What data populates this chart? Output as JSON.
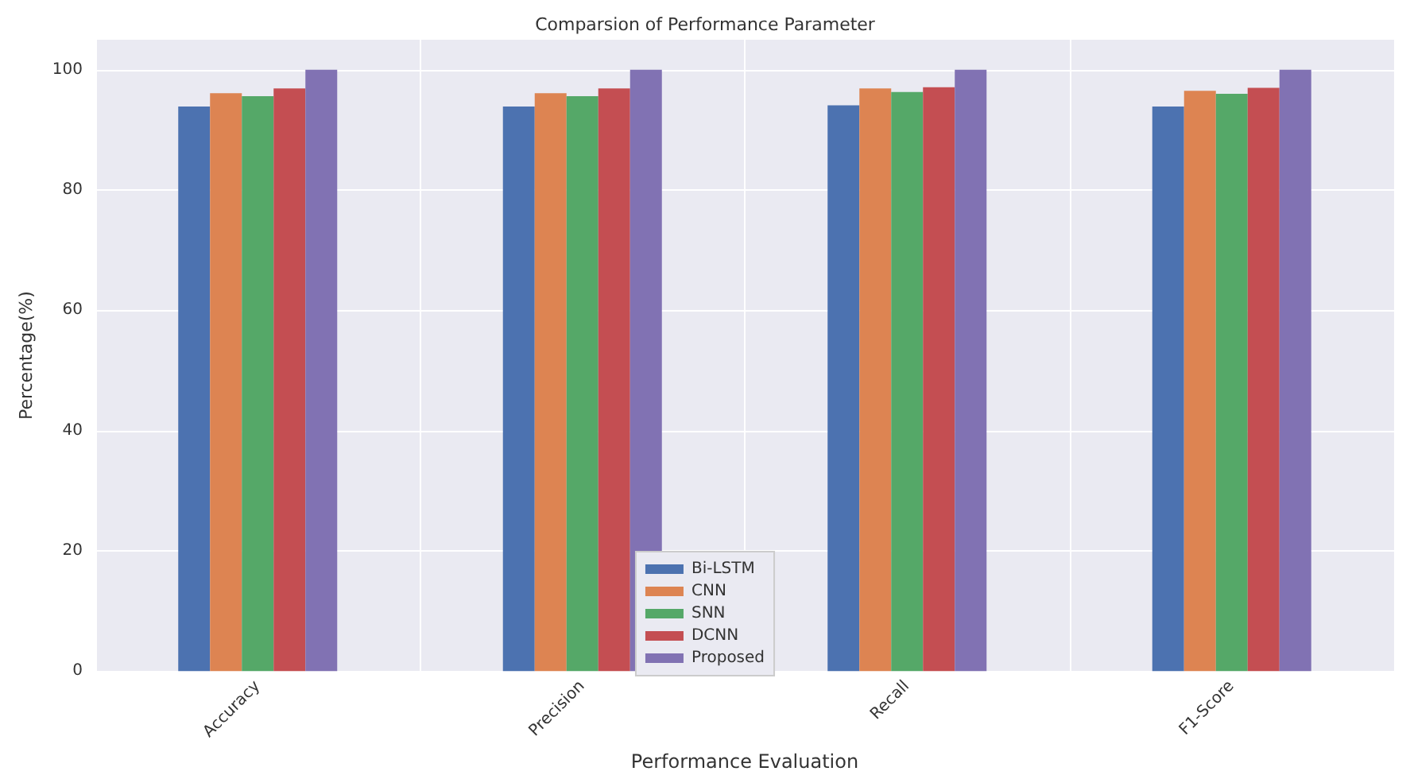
{
  "chart_data": {
    "type": "bar",
    "title": "Comparsion of Performance Parameter",
    "xlabel": "Performance Evaluation",
    "ylabel": "Percentage(%)",
    "categories": [
      "Accuracy",
      "Precision",
      "Recall",
      "F1-Score"
    ],
    "series": [
      {
        "name": "Bi-LSTM",
        "color": "#4c72b0",
        "values": [
          93.9,
          93.9,
          94.1,
          93.9
        ]
      },
      {
        "name": "CNN",
        "color": "#dd8452",
        "values": [
          96.1,
          96.1,
          96.9,
          96.5
        ]
      },
      {
        "name": "SNN",
        "color": "#55a868",
        "values": [
          95.6,
          95.6,
          96.3,
          96.0
        ]
      },
      {
        "name": "DCNN",
        "color": "#c44e52",
        "values": [
          96.9,
          96.9,
          97.1,
          97.0
        ]
      },
      {
        "name": "Proposed",
        "color": "#8172b3",
        "values": [
          100,
          100,
          100,
          100
        ]
      }
    ],
    "ylim": [
      0,
      105
    ],
    "yticks": [
      0,
      20,
      40,
      60,
      80,
      100
    ],
    "grid": true,
    "legend": "bottom"
  }
}
